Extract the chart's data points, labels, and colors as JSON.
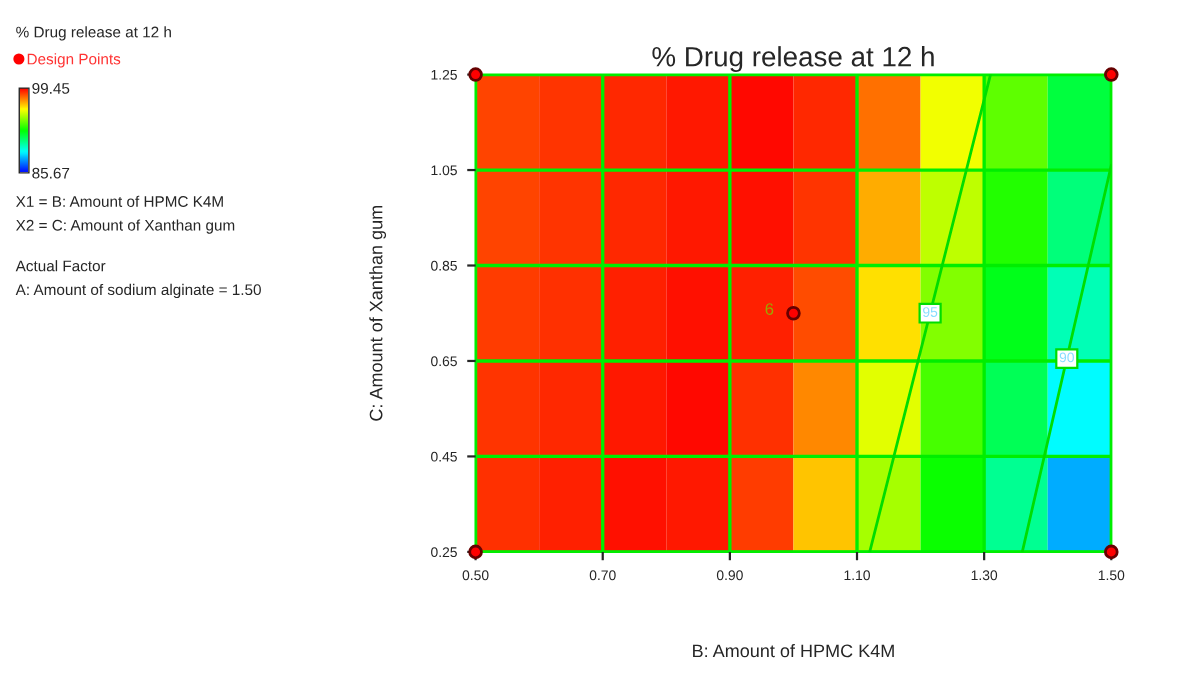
{
  "chart_data": {
    "type": "heatmap",
    "title": "% Drug release at 12 h",
    "legend_title": "% Drug release at 12 h",
    "xlabel": "B: Amount of HPMC K4M",
    "ylabel": "C: Amount of Xanthan gum",
    "xlim": [
      0.5,
      1.5
    ],
    "xticks": [
      {
        "value": 0.5,
        "label": "0.50"
      },
      {
        "value": 0.7,
        "label": "0.70"
      },
      {
        "value": 0.9,
        "label": "0.90"
      },
      {
        "value": 1.1,
        "label": "1.10"
      },
      {
        "value": 1.3,
        "label": "1.30"
      },
      {
        "value": 1.5,
        "label": "1.50"
      }
    ],
    "ylim": [
      0.25,
      1.25
    ],
    "yticks": [
      {
        "value": 0.25,
        "label": "0.25"
      },
      {
        "value": 0.45,
        "label": "0.45"
      },
      {
        "value": 0.65,
        "label": "0.65"
      },
      {
        "value": 0.85,
        "label": "0.85"
      },
      {
        "value": 1.05,
        "label": "1.05"
      },
      {
        "value": 1.25,
        "label": "1.25"
      }
    ],
    "cells": [
      [
        98.5,
        98.7,
        98.9,
        99.1,
        99.3,
        98.9,
        97.9,
        95.8,
        93.8,
        91.7
      ],
      [
        98.5,
        98.7,
        98.9,
        99.1,
        99.2,
        98.7,
        97.1,
        95.1,
        93.0,
        90.9
      ],
      [
        98.6,
        98.8,
        99.0,
        99.2,
        99.0,
        98.4,
        96.4,
        94.3,
        92.2,
        90.1
      ],
      [
        98.7,
        98.9,
        99.1,
        99.3,
        98.8,
        97.6,
        95.6,
        93.5,
        91.4,
        89.1
      ],
      [
        98.8,
        99.0,
        99.2,
        99.1,
        98.6,
        96.8,
        94.8,
        92.7,
        90.6,
        88.0
      ]
    ],
    "clim": [
      85.67,
      99.45
    ],
    "cticks": [
      85.67,
      99.45
    ],
    "series": [
      {
        "type": "line",
        "name": "95",
        "color": "#00dd00",
        "x": [
          1.12,
          1.31
        ],
        "values": [
          0.25,
          1.25
        ]
      },
      {
        "type": "line",
        "name": "90",
        "color": "#00dd00",
        "x": [
          1.36,
          1.5
        ],
        "values": [
          0.25,
          1.06
        ]
      },
      {
        "type": "scatter",
        "name": "Design Points",
        "color": "#ff0000",
        "x": [
          0.5,
          0.5,
          1.5,
          1.5,
          1.0
        ],
        "values": [
          0.25,
          1.25,
          0.25,
          1.25,
          0.75
        ],
        "marker": "circle"
      }
    ],
    "grid": true,
    "legend": "left",
    "annotations": [
      {
        "text": "6",
        "x": 1.0,
        "y": 0.75
      },
      "X1 = B: Amount of HPMC K4M",
      "X2 = C: Amount of Xanthan gum",
      "Actual Factor",
      "A: Amount of sodium alginate = 1.50"
    ]
  }
}
